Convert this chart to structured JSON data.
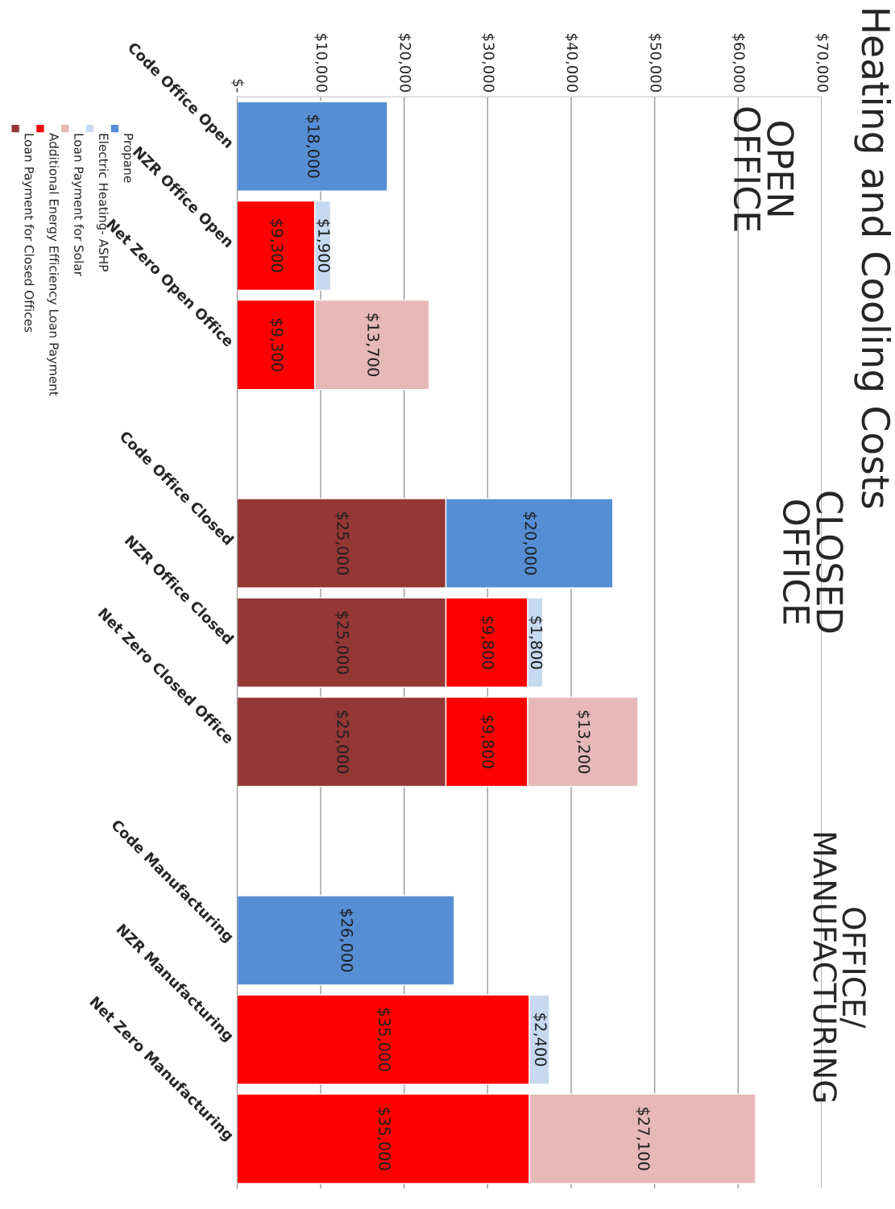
{
  "chart_data": {
    "type": "bar",
    "orientation": "horizontal",
    "stacked": true,
    "title": "Heating and Cooling Costs",
    "categories": [
      "Code Office Open",
      "NZR Office Open",
      "Net Zero Open Office",
      null,
      "Code Office Closed",
      "NZR Office Closed",
      "Net Zero Closed Office",
      null,
      "Code Manufacturing",
      "NZR Manufacturing",
      "Net Zero Manufacturing"
    ],
    "series": [
      {
        "name": "Loan Payment for Closed Offices",
        "color": "#953735",
        "values": [
          null,
          null,
          null,
          null,
          25000,
          25000,
          25000,
          null,
          null,
          null,
          null
        ],
        "value_labels": [
          null,
          null,
          null,
          null,
          "$25,000",
          "$25,000",
          "$25,000",
          null,
          null,
          null,
          null
        ]
      },
      {
        "name": "Additional Energy Efficiency Loan Payment",
        "color": "#ff0000",
        "values": [
          null,
          9300,
          9300,
          null,
          null,
          9800,
          9800,
          null,
          null,
          35000,
          35000
        ],
        "value_labels": [
          null,
          "$9,300",
          "$9,300",
          null,
          null,
          "$9,800",
          "$9,800",
          null,
          null,
          "$35,000",
          "$35,000"
        ]
      },
      {
        "name": "Loan Payment for Solar",
        "color": "#e6b9b8",
        "values": [
          null,
          null,
          13700,
          null,
          null,
          null,
          13200,
          null,
          null,
          null,
          27100
        ],
        "value_labels": [
          null,
          null,
          "$13,700",
          null,
          null,
          null,
          "$13,200",
          null,
          null,
          null,
          "$27,100"
        ]
      },
      {
        "name": "Electric Heating- ASHP",
        "color": "#c6d9f1",
        "values": [
          null,
          1900,
          null,
          null,
          null,
          1800,
          null,
          null,
          null,
          2400,
          null
        ],
        "value_labels": [
          null,
          "$1,900",
          null,
          null,
          null,
          "$1,800",
          null,
          null,
          null,
          "$2,400",
          null
        ]
      },
      {
        "name": "Propane",
        "color": "#558ed5",
        "values": [
          18000,
          null,
          null,
          null,
          20000,
          null,
          null,
          null,
          26000,
          null,
          null
        ],
        "value_labels": [
          "$18,000",
          null,
          null,
          null,
          "$20,000",
          null,
          null,
          null,
          "$26,000",
          null,
          null
        ]
      }
    ],
    "xlim": [
      0,
      70000
    ],
    "xticks": [
      {
        "value": 0,
        "label": "$-"
      },
      {
        "value": 10000,
        "label": "$10,000"
      },
      {
        "value": 20000,
        "label": "$20,000"
      },
      {
        "value": 30000,
        "label": "$30,000"
      },
      {
        "value": 40000,
        "label": "$40,000"
      },
      {
        "value": 50000,
        "label": "$50,000"
      },
      {
        "value": 60000,
        "label": "$60,000"
      },
      {
        "value": 70000,
        "label": "$70,000"
      }
    ],
    "grid": "x",
    "legend": "left",
    "annotations": [
      "OPEN\nOFFICE",
      "CLOSED\nOFFICE",
      "OFFICE/\nMANUFACTURING"
    ]
  }
}
